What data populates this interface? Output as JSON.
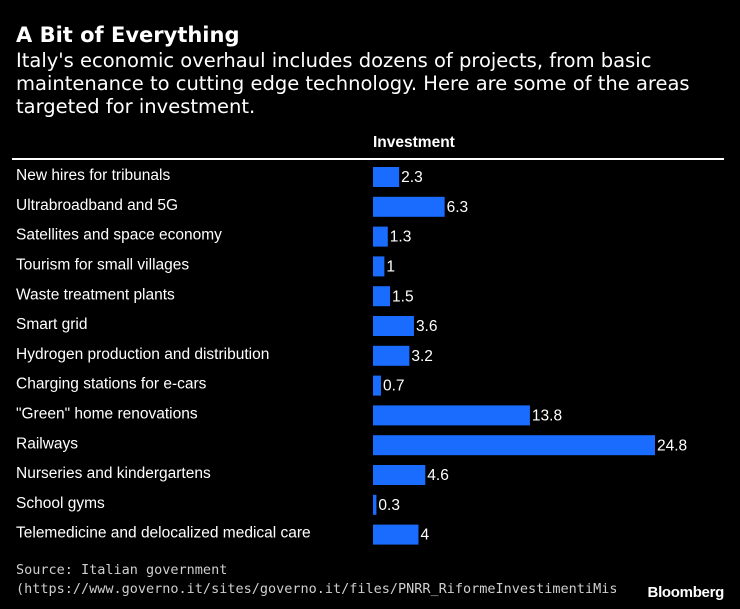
{
  "header": {
    "title": "A Bit of Everything",
    "subtitle": "Italy's economic overhaul includes dozens of projects, from basic maintenance to cutting edge technology. Here are some of the areas targeted for investment."
  },
  "chart_data": {
    "type": "bar",
    "orientation": "horizontal",
    "title": "A Bit of Everything",
    "column_header": "Investment",
    "bar_color": "#1a6cff",
    "categories": [
      "New hires for tribunals",
      "Ultrabroadband and 5G",
      "Satellites and space economy",
      "Tourism for small villages",
      "Waste treatment plants",
      "Smart grid",
      "Hydrogen production and distribution",
      "Charging stations for e-cars",
      "\"Green\" home renovations",
      "Railways",
      "Nurseries and kindergartens",
      "School gyms",
      "Telemedicine and delocalized medical care"
    ],
    "values": [
      2.3,
      6.3,
      1.3,
      1,
      1.5,
      3.6,
      3.2,
      0.7,
      13.8,
      24.8,
      4.6,
      0.3,
      4
    ],
    "value_labels": [
      "2.3",
      "6.3",
      "1.3",
      "1",
      "1.5",
      "3.6",
      "3.2",
      "0.7",
      "13.8",
      "24.8",
      "4.6",
      "0.3",
      "4"
    ],
    "xlim": [
      0,
      24.8
    ],
    "grid": false,
    "legend": "none"
  },
  "footer": {
    "source": "Source: Italian government",
    "source_url": "(https://www.governo.it/sites/governo.it/files/PNRR_RiformeInvestimentiMissioni",
    "brand": "Bloomberg"
  },
  "colors": {
    "background": "#000000",
    "text": "#ffffff",
    "bar": "#1a6cff"
  }
}
